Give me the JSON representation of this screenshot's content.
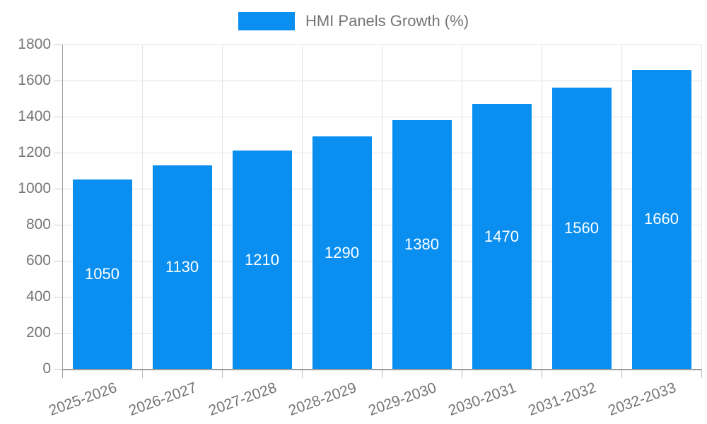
{
  "legend": {
    "label": "HMI Panels Growth (%)"
  },
  "colors": {
    "bar": "#0a8ff0",
    "axis_text": "#757575",
    "grid_line": "#e3e3e3",
    "axis_line": "#9e9e9e",
    "data_label": "#ffffff",
    "background": "#ffffff"
  },
  "chart_data": {
    "type": "bar",
    "title": "HMI Panels Growth (%)",
    "categories": [
      "2025-2026",
      "2026-2027",
      "2027-2028",
      "2028-2029",
      "2029-2030",
      "2030-2031",
      "2031-2032",
      "2032-2033"
    ],
    "values": [
      1050,
      1130,
      1210,
      1290,
      1380,
      1470,
      1560,
      1660
    ],
    "xlabel": "",
    "ylabel": "",
    "ylim": [
      0,
      1800
    ],
    "yticks": [
      0,
      200,
      400,
      600,
      800,
      1000,
      1200,
      1400,
      1600,
      1800
    ],
    "grid": true,
    "legend_position": "top",
    "data_labels": "inside-middle",
    "x_label_rotation_deg": -20
  }
}
